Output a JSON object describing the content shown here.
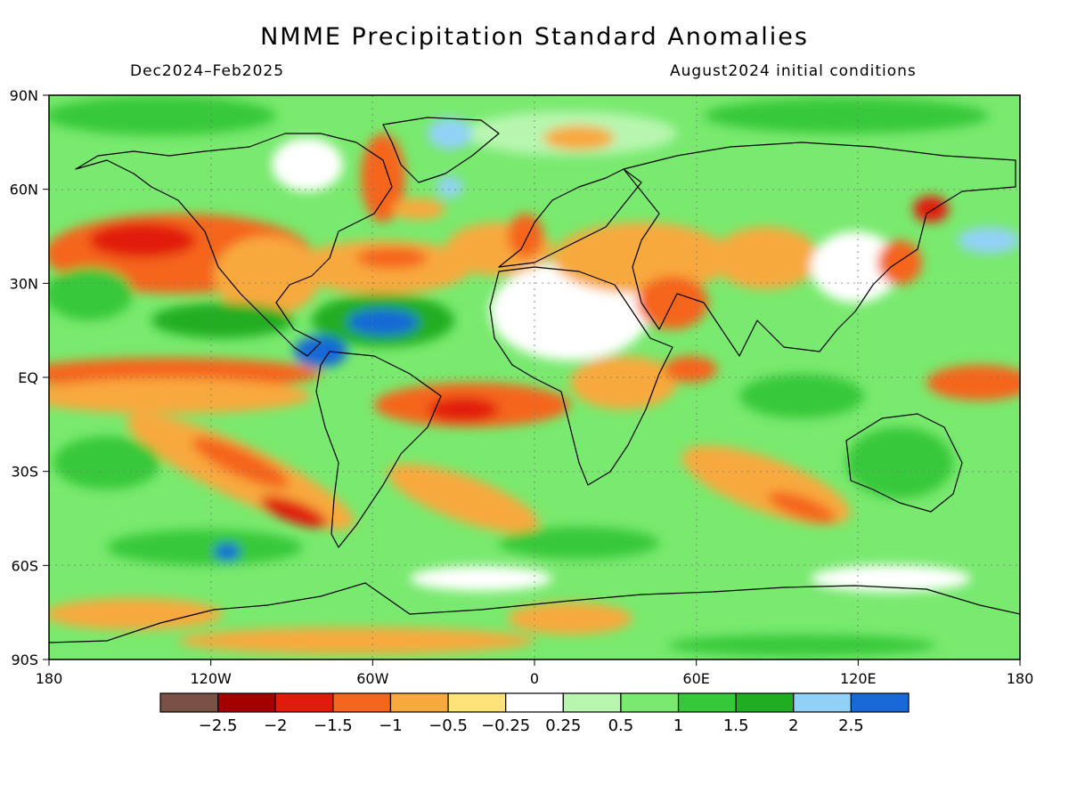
{
  "title": "NMME Precipitation Standard Anomalies",
  "subtitle_left": "Dec2024–Feb2025",
  "subtitle_right": "August2024 initial conditions",
  "map": {
    "lat_labels": [
      "90N",
      "60N",
      "30N",
      "EQ",
      "30S",
      "60S",
      "90S"
    ],
    "lat_values": [
      90,
      60,
      30,
      0,
      -30,
      -60,
      -90
    ],
    "lon_labels": [
      "180",
      "120W",
      "60W",
      "0",
      "60E",
      "120E",
      "180"
    ],
    "lon_values": [
      -180,
      -120,
      -60,
      0,
      60,
      120,
      180
    ],
    "lon_range": [
      -180,
      180
    ],
    "lat_range": [
      -90,
      90
    ],
    "grid": "dotted"
  },
  "legend": {
    "colors": [
      "#7a5146",
      "#a50000",
      "#e11b0b",
      "#f5651e",
      "#f8a93e",
      "#fbe37a",
      "#ffffff",
      "#b8f6b0",
      "#79ea6f",
      "#37c83a",
      "#20ad21",
      "#92d1f7",
      "#1669d6"
    ],
    "labels": [
      "−2.5",
      "−2",
      "−1.5",
      "−1",
      "−0.5",
      "−0.25",
      "0.25",
      "0.5",
      "1",
      "1.5",
      "2",
      "2.5"
    ]
  }
}
